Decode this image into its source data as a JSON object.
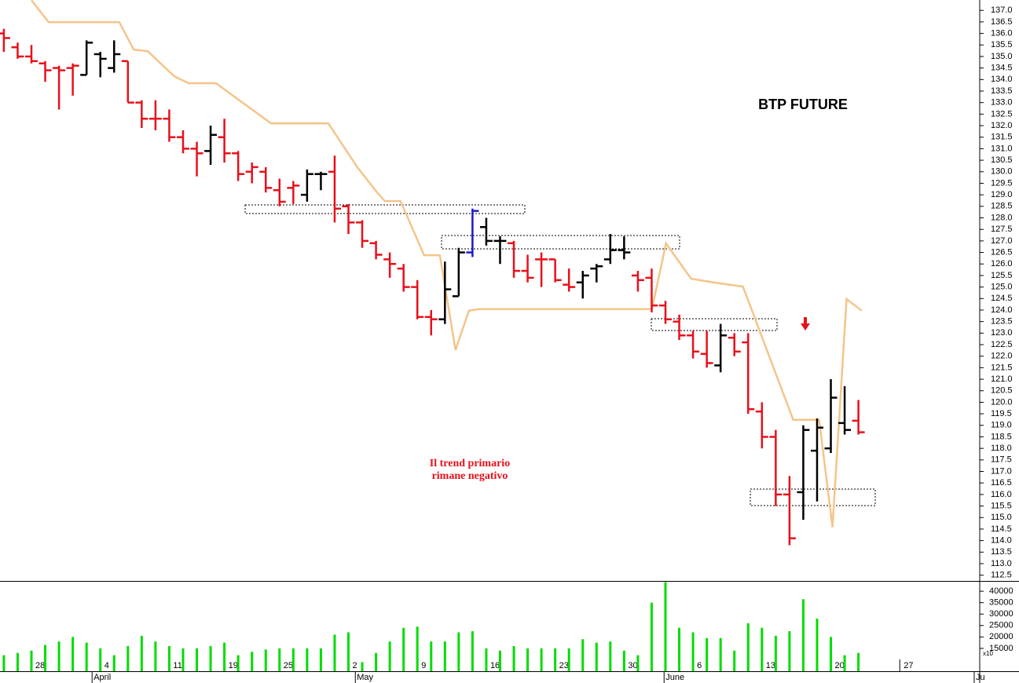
{
  "chart_data": {
    "type": "ohlc",
    "title": "BTP FUTURE",
    "annotation_lines": [
      "Il trend primario",
      "rimane negativo"
    ],
    "annotation_color": "#e8101a",
    "categories": [
      null,
      null,
      null,
      null,
      null,
      null,
      null,
      null,
      null,
      null,
      null,
      null,
      null,
      null,
      null,
      null,
      null,
      null,
      null,
      null,
      null,
      null,
      null,
      null,
      null,
      null,
      null,
      null,
      null,
      null,
      null,
      null,
      null,
      null,
      null,
      null,
      null,
      null,
      null,
      null,
      null,
      null,
      null,
      null,
      null,
      null,
      null,
      null,
      null,
      null,
      null,
      null,
      null,
      null,
      null,
      null,
      null,
      null,
      null,
      null,
      null,
      null,
      null
    ],
    "open": [
      136.0,
      135.4,
      135.0,
      134.7,
      134.5,
      134.5,
      134.2,
      135.1,
      134.5,
      134.8,
      133.0,
      132.3,
      132.3,
      131.5,
      131.0,
      130.9,
      131.5,
      130.8,
      130.0,
      130.0,
      129.2,
      129.3,
      129.0,
      129.9,
      130.0,
      128.5,
      127.8,
      126.9,
      126.2,
      125.8,
      125.0,
      123.7,
      123.6,
      124.6,
      126.5,
      127.6,
      127.0,
      126.9,
      125.7,
      126.2,
      126.2,
      125.1,
      125.2,
      125.8,
      126.2,
      126.6,
      125.5,
      125.4,
      124.2,
      123.5,
      122.9,
      122.1,
      121.6,
      122.8,
      122.6,
      119.6,
      118.5,
      116.0,
      116.1,
      117.9,
      118.0,
      119.1,
      119.2
    ],
    "high": [
      136.2,
      135.6,
      135.5,
      134.8,
      134.6,
      134.7,
      135.7,
      135.2,
      135.7,
      134.8,
      133.1,
      133.1,
      132.7,
      131.8,
      131.3,
      132.0,
      132.3,
      130.9,
      130.4,
      130.2,
      129.7,
      129.6,
      130.1,
      130.0,
      130.7,
      128.6,
      127.9,
      127.0,
      126.5,
      126.0,
      125.3,
      124.0,
      126.1,
      126.7,
      128.4,
      128.0,
      127.2,
      127.0,
      126.4,
      126.5,
      126.2,
      125.8,
      125.7,
      126.0,
      127.3,
      127.2,
      125.7,
      125.8,
      124.4,
      123.8,
      123.1,
      123.1,
      123.4,
      123.0,
      123.0,
      120.0,
      118.8,
      116.8,
      119.0,
      119.3,
      121.0,
      120.7,
      120.1
    ],
    "low": [
      135.2,
      134.9,
      134.7,
      133.9,
      132.7,
      133.3,
      134.2,
      134.1,
      134.3,
      133.0,
      131.9,
      131.8,
      131.3,
      130.8,
      129.8,
      130.3,
      130.4,
      129.6,
      129.5,
      129.1,
      128.5,
      128.6,
      128.7,
      129.2,
      127.8,
      127.3,
      126.7,
      126.2,
      125.4,
      124.8,
      123.6,
      122.9,
      123.4,
      124.6,
      126.3,
      126.8,
      126.0,
      125.4,
      125.2,
      125.0,
      125.2,
      124.8,
      124.5,
      125.2,
      126.0,
      126.2,
      124.8,
      123.9,
      123.4,
      122.7,
      121.9,
      121.5,
      121.3,
      122.0,
      119.5,
      118.0,
      115.5,
      113.8,
      114.9,
      115.7,
      117.8,
      118.6,
      118.6
    ],
    "close": [
      135.8,
      135.0,
      134.8,
      134.4,
      134.4,
      134.6,
      135.6,
      134.9,
      135.1,
      133.0,
      132.3,
      132.3,
      131.5,
      131.0,
      130.8,
      131.6,
      130.8,
      129.9,
      130.2,
      129.3,
      128.7,
      129.4,
      129.9,
      129.9,
      128.4,
      127.8,
      127.0,
      126.4,
      126.0,
      125.0,
      123.7,
      123.6,
      124.9,
      126.5,
      128.3,
      127.0,
      127.0,
      125.7,
      125.4,
      126.2,
      125.3,
      125.0,
      125.5,
      125.9,
      126.6,
      126.5,
      125.3,
      124.2,
      123.6,
      122.9,
      122.2,
      121.7,
      122.9,
      122.2,
      119.7,
      118.5,
      116.0,
      114.1,
      118.8,
      118.9,
      120.2,
      118.8,
      118.7
    ],
    "bar_colors": [
      "#e8101a",
      "#e8101a",
      "#e8101a",
      "#e8101a",
      "#e8101a",
      "#e8101a",
      "#000000",
      "#000000",
      "#000000",
      "#e8101a",
      "#e8101a",
      "#e8101a",
      "#e8101a",
      "#e8101a",
      "#e8101a",
      "#000000",
      "#e8101a",
      "#e8101a",
      "#e8101a",
      "#e8101a",
      "#e8101a",
      "#e8101a",
      "#000000",
      "#000000",
      "#e8101a",
      "#e8101a",
      "#e8101a",
      "#e8101a",
      "#e8101a",
      "#e8101a",
      "#e8101a",
      "#e8101a",
      "#000000",
      "#000000",
      "#1a1ac8",
      "#000000",
      "#000000",
      "#e8101a",
      "#e8101a",
      "#e8101a",
      "#e8101a",
      "#e8101a",
      "#000000",
      "#000000",
      "#000000",
      "#000000",
      "#e8101a",
      "#e8101a",
      "#e8101a",
      "#e8101a",
      "#e8101a",
      "#e8101a",
      "#000000",
      "#e8101a",
      "#e8101a",
      "#e8101a",
      "#e8101a",
      "#e8101a",
      "#000000",
      "#000000",
      "#000000",
      "#000000",
      "#e8101a"
    ],
    "xlim": [
      -0.28,
      70.8
    ],
    "xticks": [
      {
        "value": 2,
        "label": "28"
      },
      {
        "value": 7,
        "label": "4"
      },
      {
        "value": 12,
        "label": "11"
      },
      {
        "value": 16,
        "label": "19"
      },
      {
        "value": 20,
        "label": "25"
      },
      {
        "value": 25,
        "label": "2"
      },
      {
        "value": 30,
        "label": "9"
      },
      {
        "value": 35,
        "label": "16"
      },
      {
        "value": 40,
        "label": "23"
      },
      {
        "value": 45,
        "label": "30"
      },
      {
        "value": 50,
        "label": "6"
      },
      {
        "value": 55,
        "label": "13"
      },
      {
        "value": 60,
        "label": "20"
      },
      {
        "value": 65,
        "label": "27"
      }
    ],
    "month_ticks": [
      {
        "value": 6.4,
        "label": "April"
      },
      {
        "value": 25.5,
        "label": "May"
      },
      {
        "value": 47.9,
        "label": "June"
      },
      {
        "value": 70.4,
        "label": "Ju"
      }
    ],
    "ylim": [
      112.25,
      137.45
    ],
    "yticks": [
      112.5,
      {
        "value": 113,
        "label": "113.0"
      },
      113.5,
      {
        "value": 114,
        "label": "114.0"
      },
      114.5,
      {
        "value": 115,
        "label": "115.0"
      },
      115.5,
      {
        "value": 116,
        "label": "116.0"
      },
      116.5,
      {
        "value": 117,
        "label": "117.0"
      },
      117.5,
      {
        "value": 118,
        "label": "118.0"
      },
      118.5,
      {
        "value": 119,
        "label": "119.0"
      },
      119.5,
      {
        "value": 120,
        "label": "120.0"
      },
      120.5,
      {
        "value": 121,
        "label": "121.0"
      },
      121.5,
      {
        "value": 122,
        "label": "122.0"
      },
      122.5,
      {
        "value": 123,
        "label": "123.0"
      },
      123.5,
      {
        "value": 124,
        "label": "124.0"
      },
      124.5,
      {
        "value": 125,
        "label": "125.0"
      },
      125.5,
      {
        "value": 126,
        "label": "126.0"
      },
      126.5,
      {
        "value": 127,
        "label": "127.0"
      },
      127.5,
      {
        "value": 128,
        "label": "128.0"
      },
      128.5,
      {
        "value": 129,
        "label": "129.0"
      },
      129.5,
      {
        "value": 130,
        "label": "130.0"
      },
      130.5,
      {
        "value": 131,
        "label": "131.0"
      },
      131.5,
      {
        "value": 132,
        "label": "132.0"
      },
      132.5,
      {
        "value": 133,
        "label": "133.0"
      },
      133.5,
      {
        "value": 134,
        "label": "134.0"
      },
      134.5,
      {
        "value": 135,
        "label": "135.0"
      },
      135.5,
      {
        "value": 136,
        "label": "136.0"
      },
      136.5,
      {
        "value": 137,
        "label": "137.0"
      }
    ],
    "overlay": {
      "color": "#f5c48a",
      "x": [
        2.0,
        3.25,
        8.38,
        9.41,
        10.43,
        12.37,
        13.4,
        15.39,
        19.38,
        23.54,
        25.65,
        27.07,
        27.64,
        28.78,
        30.49,
        31.63,
        32.77,
        33.74,
        34.48,
        47.02,
        48.04,
        49.86,
        51.57,
        53.62,
        57.27,
        59.15,
        60.12,
        61.14,
        62.23
      ],
      "values": [
        137.44,
        136.49,
        136.49,
        135.3,
        135.23,
        134.14,
        133.84,
        133.84,
        132.1,
        132.1,
        130.19,
        129.11,
        128.73,
        128.73,
        126.38,
        126.38,
        122.27,
        123.97,
        124.04,
        124.04,
        126.89,
        125.36,
        125.19,
        125.02,
        119.24,
        119.24,
        114.58,
        124.48,
        123.97
      ]
    },
    "volume": {
      "color": "#00dd00",
      "values": [
        12000,
        13000,
        14000,
        16500,
        18000,
        20000,
        17500,
        15000,
        12000,
        16000,
        20500,
        18000,
        16000,
        15000,
        15000,
        16000,
        17500,
        12000,
        13500,
        14500,
        15000,
        15000,
        15000,
        15000,
        21000,
        22000,
        9000,
        13000,
        18000,
        24000,
        24500,
        18000,
        18000,
        22000,
        22500,
        15000,
        14000,
        16000,
        15000,
        15000,
        15000,
        15000,
        19000,
        17500,
        18000,
        14000,
        12000,
        35000,
        44000,
        24000,
        22000,
        19500,
        19500,
        14000,
        26000,
        24000,
        20500,
        22500,
        36500,
        28000,
        20000,
        12000,
        13000
      ],
      "ylim": [
        5000,
        44500
      ],
      "yticks": [
        15000,
        20000,
        25000,
        30000,
        35000,
        40000
      ],
      "unit_note": "x10"
    }
  }
}
